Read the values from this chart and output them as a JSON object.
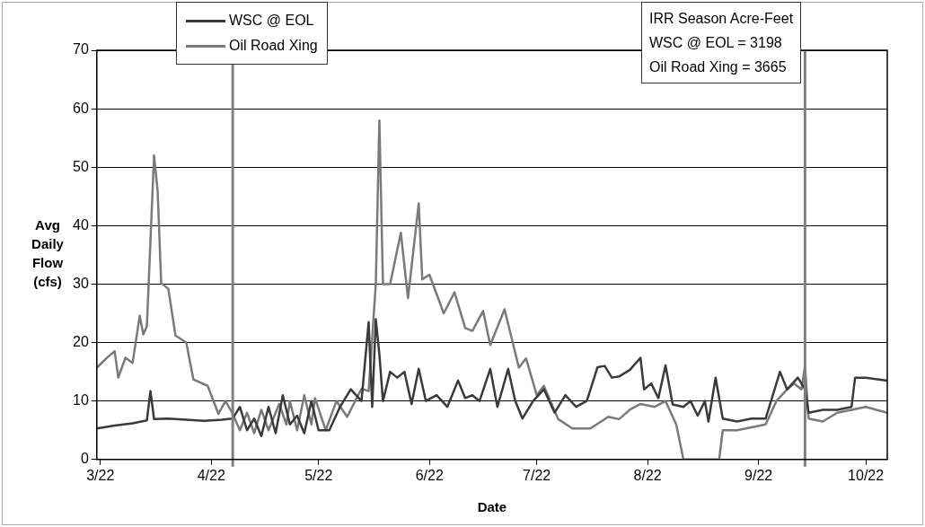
{
  "chart_data": {
    "type": "line",
    "xlabel": "Date",
    "ylabel": "Avg Daily Flow (cfs)",
    "annotations": [
      "IRR Season Acre-Feet",
      "WSC @ EOL = 3198",
      "Oil Road Xing = 3665"
    ],
    "xlim": [
      "--03-21",
      "--10-28"
    ],
    "xticks": [
      {
        "value": "--03-22",
        "label": "3/22"
      },
      {
        "value": "--04-22",
        "label": "4/22"
      },
      {
        "value": "--05-22",
        "label": "5/22"
      },
      {
        "value": "--06-22",
        "label": "6/22"
      },
      {
        "value": "--07-22",
        "label": "7/22"
      },
      {
        "value": "--08-22",
        "label": "8/22"
      },
      {
        "value": "--09-22",
        "label": "9/22"
      },
      {
        "value": "--10-22",
        "label": "10/22"
      }
    ],
    "ylim": [
      0,
      70
    ],
    "yticks": [
      0,
      10,
      20,
      30,
      40,
      50,
      60,
      70
    ],
    "grid": "y",
    "legend": "top left",
    "marker": "none",
    "line_style": "solid",
    "ref_lines": [
      {
        "axis": "x",
        "value": "--04-28",
        "color": "#808080"
      },
      {
        "axis": "x",
        "value": "--10-05",
        "color": "#808080"
      }
    ],
    "series": [
      {
        "name": "WSC @ EOL",
        "color": "#3a3a3a",
        "x": [
          "--03-21",
          "--03-26",
          "--03-31",
          "--04-04",
          "--04-05",
          "--04-06",
          "--04-10",
          "--04-15",
          "--04-20",
          "--04-25",
          "--04-28",
          "--04-30",
          "--05-02",
          "--05-04",
          "--05-06",
          "--05-08",
          "--05-10",
          "--05-12",
          "--05-14",
          "--05-16",
          "--05-18",
          "--05-20",
          "--05-22",
          "--05-25",
          "--05-28",
          "--05-31",
          "--06-03",
          "--06-05",
          "--06-06",
          "--06-07",
          "--06-08",
          "--06-09",
          "--06-11",
          "--06-13",
          "--06-15",
          "--06-17",
          "--06-19",
          "--06-21",
          "--06-24",
          "--06-27",
          "--06-30",
          "--07-02",
          "--07-04",
          "--07-06",
          "--07-09",
          "--07-11",
          "--07-14",
          "--07-16",
          "--07-18",
          "--07-21",
          "--07-24",
          "--07-27",
          "--07-30",
          "--08-02",
          "--08-05",
          "--08-08",
          "--08-10",
          "--08-12",
          "--08-14",
          "--08-17",
          "--08-20",
          "--08-21",
          "--08-23",
          "--08-25",
          "--08-27",
          "--08-29",
          "--09-01",
          "--09-03",
          "--09-05",
          "--09-07",
          "--09-08",
          "--09-10",
          "--09-12",
          "--09-16",
          "--09-20",
          "--09-24",
          "--09-28",
          "--09-30",
          "--10-03",
          "--10-05",
          "--10-06",
          "--10-10",
          "--10-14",
          "--10-18",
          "--10-19",
          "--10-22",
          "--10-28"
        ],
        "values": [
          5.3,
          5.8,
          6.2,
          6.7,
          11.7,
          6.9,
          7,
          6.8,
          6.6,
          6.8,
          7,
          9,
          5,
          7,
          4,
          9,
          4.5,
          11,
          6,
          7.5,
          4.5,
          10,
          5,
          5,
          9,
          12,
          10,
          23.5,
          9,
          24,
          18,
          10,
          15,
          14,
          15,
          9.5,
          15.5,
          10,
          11,
          9,
          13.5,
          10.5,
          11,
          10,
          15.5,
          9,
          15.5,
          10,
          7,
          10,
          12,
          8,
          11,
          9,
          10,
          15.8,
          16,
          14,
          14.2,
          15.3,
          17.4,
          12,
          13,
          10.5,
          16.1,
          9.4,
          9,
          10,
          7.5,
          10,
          6.5,
          14,
          7,
          6.5,
          7,
          7,
          15,
          12,
          14,
          12,
          8,
          8.5,
          8.5,
          9,
          14,
          14,
          13.5
        ]
      },
      {
        "name": "Oil Road Xing",
        "color": "#7a7a7a",
        "x": [
          "--03-21",
          "--03-24",
          "--03-26",
          "--03-27",
          "--03-29",
          "--03-31",
          "--04-02",
          "--04-03",
          "--04-04",
          "--04-06",
          "--04-07",
          "--04-08",
          "--04-10",
          "--04-12",
          "--04-15",
          "--04-17",
          "--04-21",
          "--04-24",
          "--04-26",
          "--04-28",
          "--04-30",
          "--05-02",
          "--05-04",
          "--05-06",
          "--05-08",
          "--05-11",
          "--05-13",
          "--05-14",
          "--05-16",
          "--05-18",
          "--05-20",
          "--05-21",
          "--05-24",
          "--05-27",
          "--05-30",
          "--06-03",
          "--06-05",
          "--06-07",
          "--06-08",
          "--06-09",
          "--06-11",
          "--06-14",
          "--06-16",
          "--06-19",
          "--06-20",
          "--06-22",
          "--06-26",
          "--06-29",
          "--07-02",
          "--07-04",
          "--07-07",
          "--07-09",
          "--07-13",
          "--07-17",
          "--07-19",
          "--07-22",
          "--07-24",
          "--07-28",
          "--08-01",
          "--08-06",
          "--08-11",
          "--08-14",
          "--08-17",
          "--08-20",
          "--08-24",
          "--08-27",
          "--08-30",
          "--09-01",
          "--09-11",
          "--09-12",
          "--09-16",
          "--09-20",
          "--09-24",
          "--09-27",
          "--09-30",
          "--10-02",
          "--10-04",
          "--10-05",
          "--10-06",
          "--10-10",
          "--10-14",
          "--10-18",
          "--10-22",
          "--10-28"
        ],
        "values": [
          15.7,
          17.5,
          18.5,
          14,
          17.4,
          16.5,
          24.6,
          21.4,
          22.8,
          52,
          46,
          30.2,
          29.2,
          21.2,
          20,
          13.7,
          12.6,
          7.8,
          10,
          7.8,
          5,
          8,
          4.5,
          8.5,
          5,
          9.5,
          6,
          10,
          5,
          11,
          6,
          10.5,
          5,
          10,
          7.3,
          12.1,
          11.7,
          30,
          58,
          30,
          30,
          38.8,
          27.6,
          43.8,
          30.8,
          31.6,
          25,
          28.6,
          22.5,
          22,
          25.4,
          19.6,
          25.7,
          15.7,
          17.3,
          11,
          12.6,
          6.9,
          5.3,
          5.3,
          7.3,
          6.9,
          8.5,
          9.5,
          9,
          10,
          6,
          0,
          0,
          5,
          5,
          5.5,
          6,
          10,
          12,
          13,
          12,
          16,
          7,
          6.5,
          8,
          8.5,
          9,
          8
        ]
      }
    ]
  }
}
